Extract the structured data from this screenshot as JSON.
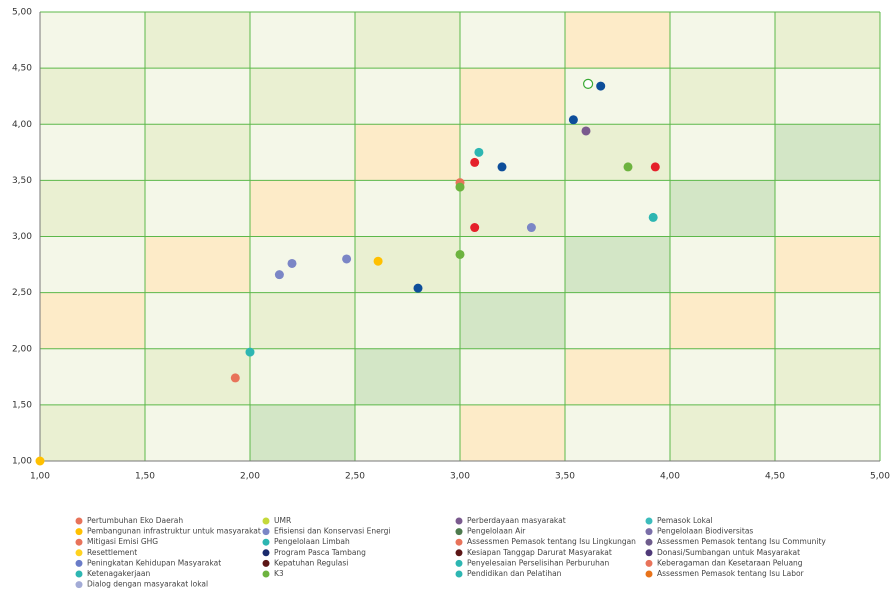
{
  "chart_data": {
    "type": "scatter",
    "xlim": [
      1,
      5
    ],
    "ylim": [
      1,
      5
    ],
    "xticks": [
      {
        "value": 1,
        "label": "1,00"
      },
      {
        "value": 1.5,
        "label": "1,50"
      },
      {
        "value": 2,
        "label": "2,00"
      },
      {
        "value": 2.5,
        "label": "2,50"
      },
      {
        "value": 3,
        "label": "3,00"
      },
      {
        "value": 3.5,
        "label": "3,50"
      },
      {
        "value": 4,
        "label": "4,00"
      },
      {
        "value": 4.5,
        "label": "4,50"
      },
      {
        "value": 5,
        "label": "5,00"
      }
    ],
    "yticks": [
      {
        "value": 1,
        "label": "1,00"
      },
      {
        "value": 1.5,
        "label": "1,50"
      },
      {
        "value": 2,
        "label": "2,00"
      },
      {
        "value": 2.5,
        "label": "2,50"
      },
      {
        "value": 3,
        "label": "3,00"
      },
      {
        "value": 3.5,
        "label": "3,50"
      },
      {
        "value": 4,
        "label": "4,00"
      },
      {
        "value": 4.5,
        "label": "4,50"
      },
      {
        "value": 5,
        "label": "5,00"
      }
    ],
    "grid": true,
    "points": [
      {
        "x": 1.0,
        "y": 1.0,
        "color": "#ffc000"
      },
      {
        "x": 1.93,
        "y": 1.74,
        "color": "#e8735a"
      },
      {
        "x": 2.0,
        "y": 1.97,
        "color": "#2db6b2"
      },
      {
        "x": 2.14,
        "y": 2.66,
        "color": "#7b86c6"
      },
      {
        "x": 2.2,
        "y": 2.76,
        "color": "#7b86c6"
      },
      {
        "x": 2.46,
        "y": 2.8,
        "color": "#7b86c6"
      },
      {
        "x": 2.61,
        "y": 2.78,
        "color": "#ffc000"
      },
      {
        "x": 2.8,
        "y": 2.54,
        "color": "#0d4e9a"
      },
      {
        "x": 3.0,
        "y": 2.84,
        "color": "#6db33f"
      },
      {
        "x": 3.0,
        "y": 3.48,
        "color": "#e8735a"
      },
      {
        "x": 3.0,
        "y": 3.44,
        "color": "#6db33f"
      },
      {
        "x": 3.07,
        "y": 3.08,
        "color": "#e5202a"
      },
      {
        "x": 3.07,
        "y": 3.66,
        "color": "#e5202a"
      },
      {
        "x": 3.09,
        "y": 3.75,
        "color": "#2db6b2"
      },
      {
        "x": 3.2,
        "y": 3.62,
        "color": "#0d4e9a"
      },
      {
        "x": 3.34,
        "y": 3.08,
        "color": "#7b86c6"
      },
      {
        "x": 3.54,
        "y": 4.04,
        "color": "#0d4e9a"
      },
      {
        "x": 3.6,
        "y": 3.94,
        "color": "#7a5a8e"
      },
      {
        "x": 3.61,
        "y": 4.36,
        "color": "#3aa935",
        "hollow": true
      },
      {
        "x": 3.67,
        "y": 4.34,
        "color": "#0d4e9a"
      },
      {
        "x": 3.8,
        "y": 3.62,
        "color": "#6db33f"
      },
      {
        "x": 3.93,
        "y": 3.62,
        "color": "#e5202a"
      },
      {
        "x": 3.92,
        "y": 3.17,
        "color": "#2db6b2"
      }
    ],
    "legend": [
      {
        "name": "Pertumbuhan Eko Daerah",
        "color": "#e8735a"
      },
      {
        "name": "Pembangunan infrastruktur untuk masyarakat",
        "color": "#ffc000"
      },
      {
        "name": "Mitigasi Emisi GHG",
        "color": "#e8735a"
      },
      {
        "name": "Resettlement",
        "color": "#ffd21f"
      },
      {
        "name": "Peningkatan Kehidupan Masyarakat",
        "color": "#6a7cc8"
      },
      {
        "name": "Ketenagakerjaan",
        "color": "#2db6b2"
      },
      {
        "name": "Dialog dengan masyarakat lokal",
        "color": "#a3abd6"
      },
      {
        "name": "UMR",
        "color": "#c5d93a"
      },
      {
        "name": "Efisiensi dan Konservasi Energi",
        "color": "#7b86c6"
      },
      {
        "name": "Pengelolaan Limbah",
        "color": "#2db6b2"
      },
      {
        "name": "Program Pasca Tambang",
        "color": "#1a2a6c"
      },
      {
        "name": "Kepatuhan Regulasi",
        "color": "#5c1616"
      },
      {
        "name": "K3",
        "color": "#6db33f"
      },
      {
        "name": "Perberdayaan masyarakat",
        "color": "#7a5a8e"
      },
      {
        "name": "Pengelolaan Air",
        "color": "#4d7a4d"
      },
      {
        "name": "Assessmen Pemasok tentang Isu Lingkungan",
        "color": "#e8735a"
      },
      {
        "name": "Kesiapan Tanggap Darurat Masyarakat",
        "color": "#5c1616"
      },
      {
        "name": "Penyelesaian Perselisihan Perburuhan",
        "color": "#2db6b2"
      },
      {
        "name": "Pendidikan dan Pelatihan",
        "color": "#2db6b2"
      },
      {
        "name": "Pemasok Lokal",
        "color": "#3cbcbc"
      },
      {
        "name": "Pengelolaan Biodiversitas",
        "color": "#7a6ea8"
      },
      {
        "name": "Assessmen Pemasok tentang Isu Community",
        "color": "#6e5c8c"
      },
      {
        "name": "Donasi/Sumbangan untuk Masyarakat",
        "color": "#4f3a78"
      },
      {
        "name": "Keberagaman dan Kesetaraan Peluang",
        "color": "#e8735a"
      },
      {
        "name": "Assessmen Pemasok tentang Isu Labor",
        "color": "#e8731a"
      }
    ]
  }
}
